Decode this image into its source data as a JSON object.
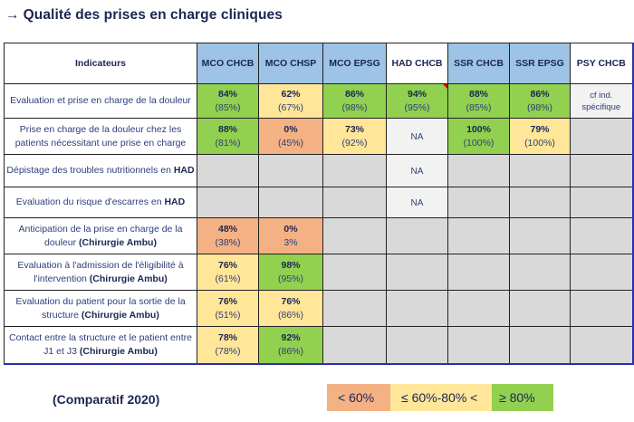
{
  "title": {
    "arrow": "→",
    "text": "Qualité des prises en charge cliniques"
  },
  "table": {
    "header": {
      "indicators": "Indicateurs",
      "columns": [
        "MCO CHCB",
        "MCO CHSP",
        "MCO EPSG",
        "HAD CHCB",
        "SSR CHCB",
        "SSR EPSG",
        "PSY CHCB"
      ]
    },
    "rows": [
      {
        "label": "Evaluation et prise en charge de la douleur",
        "label_bold": "",
        "cells": [
          {
            "value": "84%",
            "previous": "(85%)",
            "status": "green"
          },
          {
            "value": "62%",
            "previous": "(67%)",
            "status": "yellow"
          },
          {
            "value": "86%",
            "previous": "(98%)",
            "status": "green"
          },
          {
            "value": "94%",
            "previous": "(95%)",
            "status": "green"
          },
          {
            "value": "88%",
            "previous": "(85%)",
            "status": "green"
          },
          {
            "value": "86%",
            "previous": "(98%)",
            "status": "green"
          },
          {
            "note_line1": "cf ind.",
            "note_line2": "spécifique",
            "status": "light"
          }
        ]
      },
      {
        "label": "Prise en charge de la douleur chez les patients nécessitant une prise en charge",
        "label_bold": "",
        "cells": [
          {
            "value": "88%",
            "previous": "(81%)",
            "status": "green"
          },
          {
            "value": "0%",
            "previous": "(45%)",
            "status": "orange"
          },
          {
            "value": "73%",
            "previous": "(92%)",
            "status": "yellow"
          },
          {
            "na": "NA",
            "status": "light"
          },
          {
            "value": "100%",
            "previous": "(100%)",
            "status": "green"
          },
          {
            "value": "79%",
            "previous": "(100%)",
            "status": "yellow"
          },
          {
            "status": "gray"
          }
        ]
      },
      {
        "label": "Dépistage des troubles nutritionnels en ",
        "label_bold": "HAD",
        "cells": [
          {
            "status": "gray"
          },
          {
            "status": "gray"
          },
          {
            "status": "gray"
          },
          {
            "na": "NA",
            "status": "light"
          },
          {
            "status": "gray"
          },
          {
            "status": "gray"
          },
          {
            "status": "gray"
          }
        ]
      },
      {
        "label": "Evaluation du risque d'escarres en ",
        "label_bold": "HAD",
        "cells": [
          {
            "status": "gray"
          },
          {
            "status": "gray"
          },
          {
            "status": "gray"
          },
          {
            "na": "NA",
            "status": "light"
          },
          {
            "status": "gray"
          },
          {
            "status": "gray"
          },
          {
            "status": "gray"
          }
        ]
      },
      {
        "label": "Anticipation de la prise en charge de la douleur ",
        "label_bold": "(Chirurgie  Ambu)",
        "cells": [
          {
            "value": "48%",
            "previous": "(38%)",
            "status": "orange"
          },
          {
            "value": "0%",
            "previous": "3%",
            "status": "orange"
          },
          {
            "status": "gray"
          },
          {
            "status": "gray"
          },
          {
            "status": "gray"
          },
          {
            "status": "gray"
          },
          {
            "status": "gray"
          }
        ]
      },
      {
        "label": "Evaluation à l'admission de l'éligibilité à l'intervention ",
        "label_bold": "(Chirurgie  Ambu)",
        "cells": [
          {
            "value": "76%",
            "previous": "(61%)",
            "status": "yellow"
          },
          {
            "value": "98%",
            "previous": "(95%)",
            "status": "green"
          },
          {
            "status": "gray"
          },
          {
            "status": "gray"
          },
          {
            "status": "gray"
          },
          {
            "status": "gray"
          },
          {
            "status": "gray"
          }
        ]
      },
      {
        "label": "Evaluation du patient pour la sortie de la structure ",
        "label_bold": "(Chirurgie  Ambu)",
        "cells": [
          {
            "value": "76%",
            "previous": "(51%)",
            "status": "yellow"
          },
          {
            "value": "76%",
            "previous": "(86%)",
            "status": "yellow"
          },
          {
            "status": "gray"
          },
          {
            "status": "gray"
          },
          {
            "status": "gray"
          },
          {
            "status": "gray"
          },
          {
            "status": "gray"
          }
        ]
      },
      {
        "label": "Contact entre la structure et le patient entre J1 et J3 ",
        "label_bold": "(Chirurgie  Ambu)",
        "cells": [
          {
            "value": "78%",
            "previous": "(78%)",
            "status": "yellow"
          },
          {
            "value": "92%",
            "previous": "(86%)",
            "status": "green"
          },
          {
            "status": "gray"
          },
          {
            "status": "gray"
          },
          {
            "status": "gray"
          },
          {
            "status": "gray"
          },
          {
            "status": "gray"
          }
        ]
      }
    ]
  },
  "footnote": "(Comparatif 2020)",
  "legend": [
    {
      "label": "< 60%",
      "color": "#f4b183"
    },
    {
      "label": "≤ 60%-80% <",
      "color": "#ffe699"
    },
    {
      "label": "≥ 80%",
      "color": "#92d050"
    }
  ],
  "colors": {
    "green": "#92d050",
    "yellow": "#ffe699",
    "orange": "#f4b183",
    "gray": "#d9d9d9",
    "header_blue": "#9dc3e6"
  }
}
